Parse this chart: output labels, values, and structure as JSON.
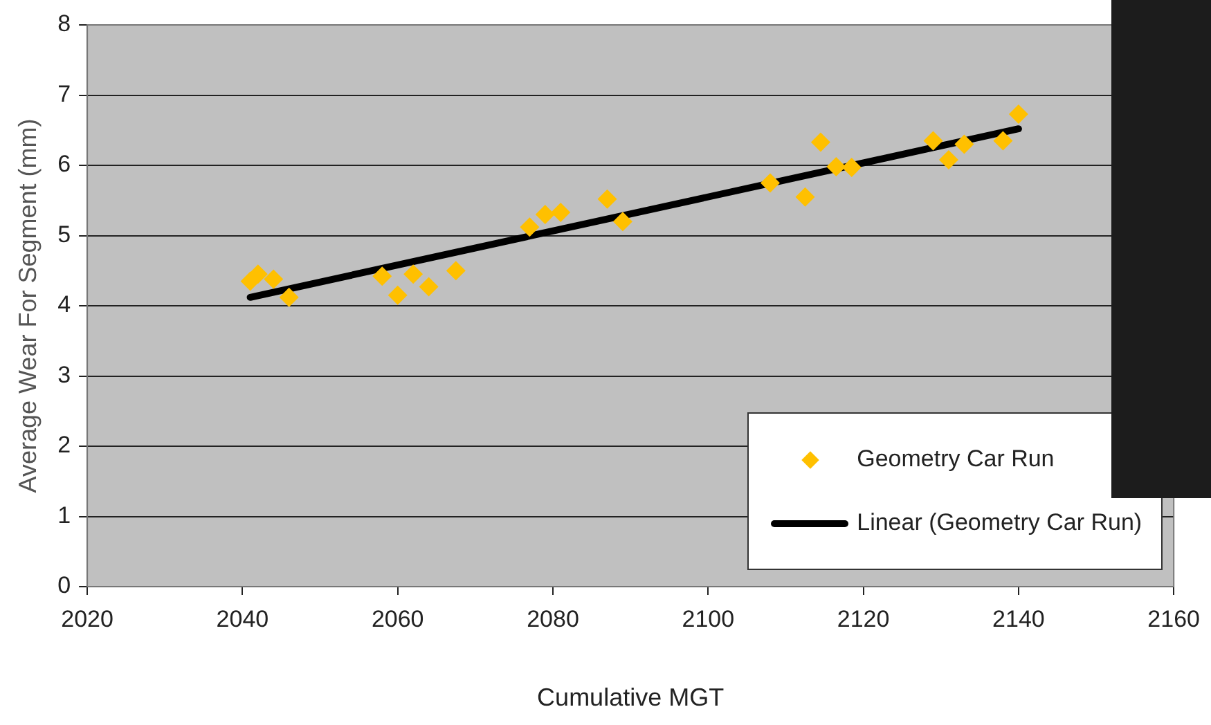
{
  "chart_data": {
    "type": "scatter",
    "xlabel": "Cumulative MGT",
    "ylabel": "Average Wear For Segment (mm)",
    "xlim": [
      2020,
      2160
    ],
    "xticks": [
      2020,
      2040,
      2060,
      2080,
      2100,
      2120,
      2140,
      2160
    ],
    "ylim": [
      0,
      8
    ],
    "yticks": [
      0,
      1,
      2,
      3,
      4,
      5,
      6,
      7,
      8
    ],
    "grid": "y",
    "legend": "bottom right",
    "series": [
      {
        "name": "Geometry Car Run",
        "marker": "diamond",
        "color": "#ffc000",
        "x": [
          2041,
          2042,
          2044,
          2046,
          2058,
          2060,
          2062,
          2064,
          2067.5,
          2077,
          2079,
          2081,
          2087,
          2089,
          2108,
          2112.5,
          2114.5,
          2116.5,
          2118.5,
          2129,
          2131,
          2133,
          2138,
          2140
        ],
        "values": [
          4.35,
          4.45,
          4.38,
          4.12,
          4.42,
          4.15,
          4.45,
          4.27,
          4.5,
          5.12,
          5.3,
          5.33,
          5.52,
          5.2,
          5.75,
          5.55,
          6.33,
          5.98,
          5.97,
          6.35,
          6.08,
          6.3,
          6.35,
          6.73
        ]
      },
      {
        "name": "Linear (Geometry Car Run)",
        "type": "line",
        "marker": "none",
        "color": "#000000",
        "x": [
          2041,
          2140
        ],
        "values": [
          4.12,
          6.52
        ]
      }
    ]
  }
}
